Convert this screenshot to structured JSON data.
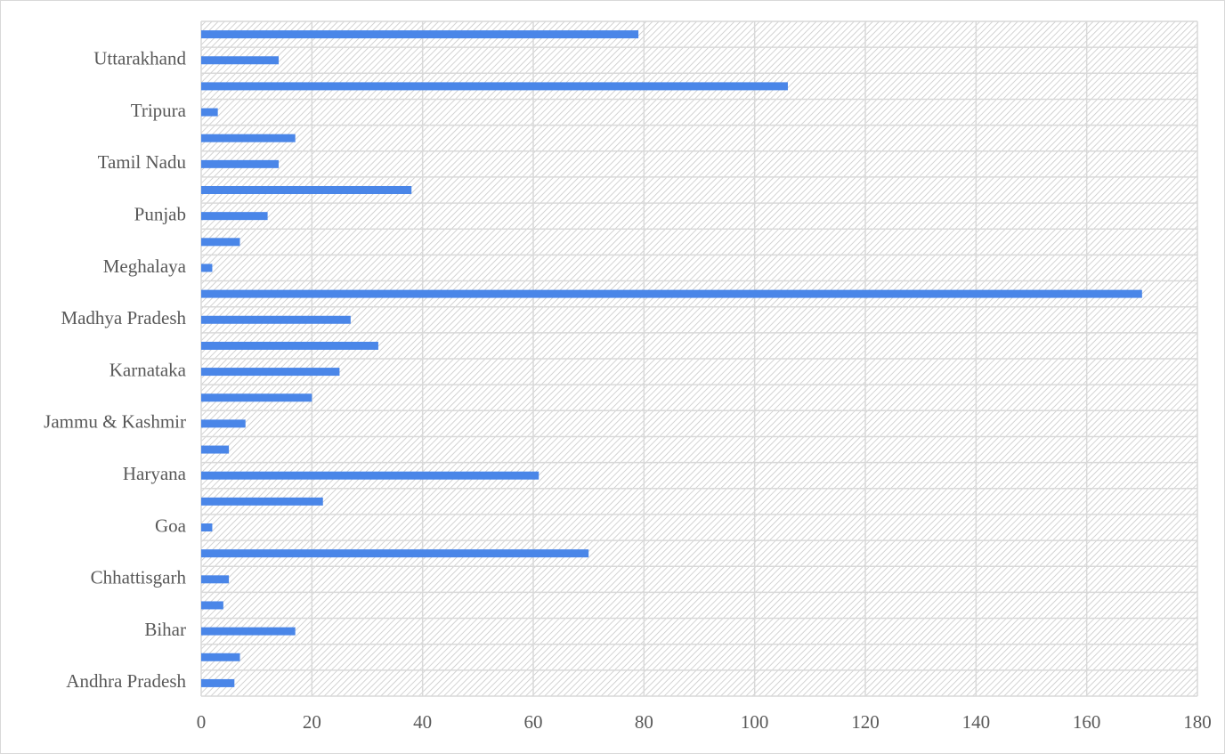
{
  "chart_data": {
    "type": "barh",
    "categories": [
      "Andhra Pradesh",
      null,
      "Bihar",
      null,
      "Chhattisgarh",
      null,
      "Goa",
      null,
      "Haryana",
      null,
      "Jammu & Kashmir",
      null,
      "Karnataka",
      null,
      "Madhya Pradesh",
      null,
      "Meghalaya",
      null,
      "Punjab",
      null,
      "Tamil Nadu",
      null,
      "Tripura",
      null,
      "Uttarakhand",
      null
    ],
    "values": [
      6,
      7,
      17,
      4,
      5,
      70,
      2,
      22,
      61,
      5,
      8,
      20,
      25,
      32,
      27,
      170,
      2,
      7,
      12,
      38,
      14,
      17,
      3,
      106,
      14,
      79
    ],
    "color": "#4a86e8",
    "xlim": [
      0,
      180
    ],
    "xticks": [
      0,
      20,
      40,
      60,
      80,
      100,
      120,
      140,
      160,
      180
    ],
    "grid": true
  }
}
